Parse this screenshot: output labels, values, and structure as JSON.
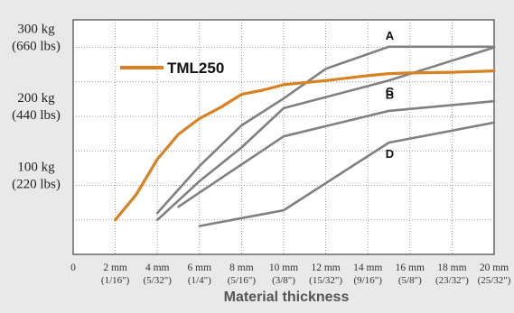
{
  "chart_data": {
    "type": "line",
    "xlabel": "Material thickness",
    "xlim": [
      0,
      20
    ],
    "ylim": [
      0,
      340
    ],
    "x_ticks": [
      {
        "value": 0,
        "label": "0",
        "sub": ""
      },
      {
        "value": 2,
        "label": "2 mm",
        "sub": "(1/16\")"
      },
      {
        "value": 4,
        "label": "4 mm",
        "sub": "(5/32\")"
      },
      {
        "value": 6,
        "label": "6 mm",
        "sub": "(1/4\")"
      },
      {
        "value": 8,
        "label": "8 mm",
        "sub": "(5/16\")"
      },
      {
        "value": 10,
        "label": "10 mm",
        "sub": "(3/8\")"
      },
      {
        "value": 12,
        "label": "12 mm",
        "sub": "(15/32\")"
      },
      {
        "value": 14,
        "label": "14 mm",
        "sub": "(9/16\")"
      },
      {
        "value": 16,
        "label": "16 mm",
        "sub": "(5/8\")"
      },
      {
        "value": 18,
        "label": "18 mm",
        "sub": "(23/32\")"
      },
      {
        "value": 20,
        "label": "20 mm",
        "sub": "(25/32\")"
      }
    ],
    "y_ticks": [
      {
        "value": 100,
        "label": "100 kg",
        "sub": "(220 lbs)"
      },
      {
        "value": 200,
        "label": "200 kg",
        "sub": "(440 lbs)"
      },
      {
        "value": 300,
        "label": "300 kg",
        "sub": "(660 lbs)"
      }
    ],
    "y_gridlines": [
      50,
      100,
      150,
      200,
      250,
      300
    ],
    "grid": "dotted",
    "legend": {
      "label": "TML250",
      "position": "top-left"
    },
    "series": [
      {
        "name": "TML250",
        "color": "#d98224",
        "x": [
          2,
          3,
          4,
          5,
          6,
          7,
          8,
          9,
          10,
          12,
          14,
          15,
          16,
          18,
          20
        ],
        "y": [
          50,
          87,
          138,
          174,
          197,
          213,
          232,
          238,
          246,
          252,
          259,
          262,
          263,
          264,
          266
        ]
      },
      {
        "name": "A",
        "color": "#808080",
        "x": [
          4,
          6,
          8,
          10,
          12,
          15,
          20
        ],
        "y": [
          60,
          128,
          187,
          226,
          269,
          301,
          301
        ]
      },
      {
        "name": "B",
        "color": "#808080",
        "x": [
          4,
          6,
          8,
          10,
          15,
          20
        ],
        "y": [
          50,
          106,
          155,
          212,
          252,
          300
        ]
      },
      {
        "name": "C",
        "color": "#808080",
        "x": [
          5,
          7,
          10,
          15,
          20
        ],
        "y": [
          69,
          110,
          171,
          208,
          222
        ]
      },
      {
        "name": "D",
        "color": "#808080",
        "x": [
          6,
          10,
          15,
          20
        ],
        "y": [
          41,
          64,
          162,
          191
        ]
      }
    ]
  }
}
